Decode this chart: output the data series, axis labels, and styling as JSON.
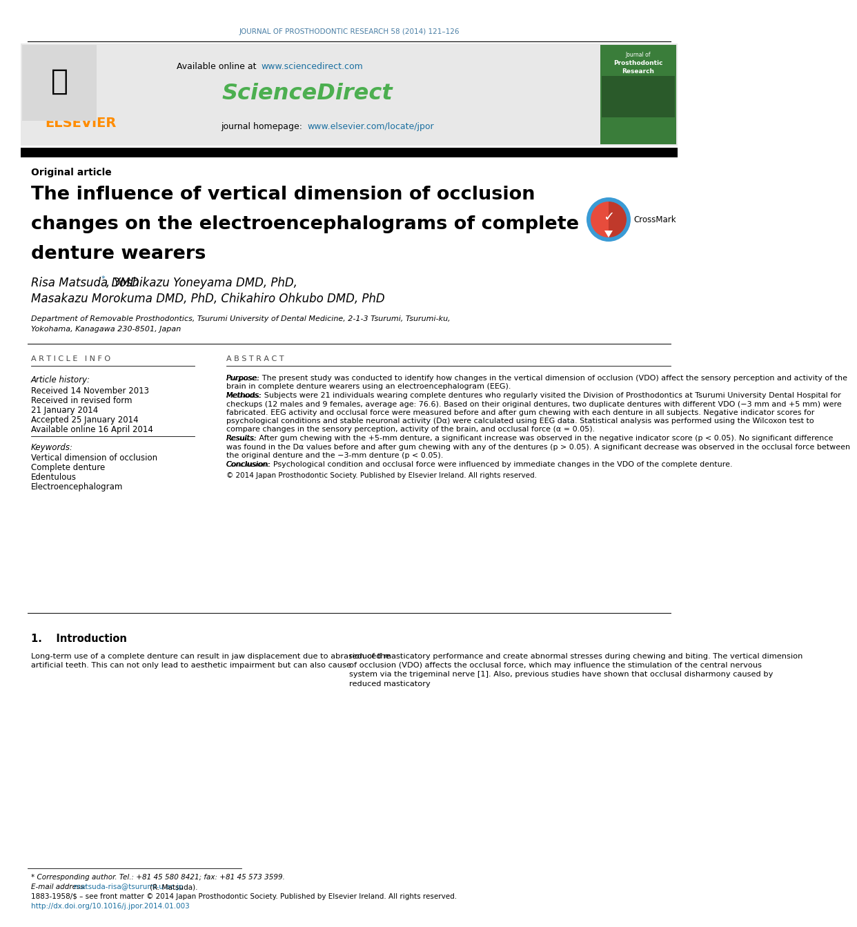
{
  "journal_header": "JOURNAL OF PROSTHODONTIC RESEARCH 58 (2014) 121–126",
  "journal_header_color": "#4a7fa5",
  "available_online_text": "Available online at ",
  "sciencedirect_url": "www.sciencedirect.com",
  "sciencedirect_logo": "ScienceDirect",
  "sciencedirect_color": "#4caf50",
  "journal_homepage_text": "journal homepage: ",
  "journal_homepage_url": "www.elsevier.com/locate/jpor",
  "elsevier_color": "#ff8c00",
  "article_type": "Original article",
  "title_line1": "The influence of vertical dimension of occlusion",
  "title_line2": "changes on the electroencephalograms of complete",
  "title_line3": "denture wearers",
  "authors_line1_pre": "Risa Matsuda DMD",
  "authors_line1_post": ", Yoshikazu Yoneyama DMD, PhD,",
  "authors_line2": "Masakazu Morokuma DMD, PhD, Chikahiro Ohkubo DMD, PhD",
  "affiliation_line1": "Department of Removable Prosthodontics, Tsurumi University of Dental Medicine, 2-1-3 Tsurumi, Tsurumi-ku,",
  "affiliation_line2": "Yokohama, Kanagawa 230-8501, Japan",
  "article_info_header": "A R T I C L E   I N F O",
  "article_history_label": "Article history:",
  "received1": "Received 14 November 2013",
  "received2": "Received in revised form",
  "received2b": "21 January 2014",
  "accepted": "Accepted 25 January 2014",
  "available_online": "Available online 16 April 2014",
  "keywords_label": "Keywords:",
  "keywords": [
    "Vertical dimension of occlusion",
    "Complete denture",
    "Edentulous",
    "Electroencephalogram"
  ],
  "abstract_header": "A B S T R A C T",
  "abstract_purpose_label": "Purpose:",
  "abstract_purpose": "  The present study was conducted to identify how changes in the vertical dimension of occlusion (VDO) affect the sensory perception and activity of the brain in complete denture wearers using an electroencephalogram (EEG).",
  "abstract_methods_label": "Methods:",
  "abstract_methods": "  Subjects were 21 individuals wearing complete dentures who regularly visited the Division of Prosthodontics at Tsurumi University Dental Hospital for checkups (12 males and 9 females, average age: 76.6). Based on their original dentures, two duplicate dentures with different VDO (−3 mm and +5 mm) were fabricated. EEG activity and occlusal force were measured before and after gum chewing with each denture in all subjects. Negative indicator scores for psychological conditions and stable neuronal activity (Dα) were calculated using EEG data. Statistical analysis was performed using the Wilcoxon test to compare changes in the sensory perception, activity of the brain, and occlusal force (α = 0.05).",
  "abstract_results_label": "Results:",
  "abstract_results": "  After gum chewing with the +5-mm denture, a significant increase was observed in the negative indicator score (p < 0.05). No significant difference was found in the Dα values before and after gum chewing with any of the dentures (p > 0.05). A significant decrease was observed in the occlusal force between the original denture and the −3-mm denture (p < 0.05).",
  "abstract_conclusion_label": "Conclusion:",
  "abstract_conclusion": "  Psychological condition and occlusal force were influenced by immediate changes in the VDO of the complete denture.",
  "copyright": "© 2014 Japan Prosthodontic Society. Published by Elsevier Ireland. All rights reserved.",
  "section1_header": "1.    Introduction",
  "section1_col1": "Long-term use of a complete denture can result in jaw displacement due to abrasion of the artificial teeth. This can not only lead to aesthetic impairment but can also cause",
  "section1_col2": "reduced masticatory performance and create abnormal stresses during chewing and biting. The vertical dimension of occlusion (VDO) affects the occlusal force, which may influence the stimulation of the central nervous system via the trigeminal nerve [1]. Also, previous studies have shown that occlusal disharmony caused by reduced masticatory",
  "footnote_corresponding": "* Corresponding author. Tel.: +81 45 580 8421; fax: +81 45 573 3599.",
  "footnote_email_label": "E-mail address: ",
  "footnote_email": "matsuda-risa@tsurumi-u.ac.jp",
  "footnote_email_suffix": " (R. Matsuda).",
  "footnote_issn": "1883-1958/$ – see front matter © 2014 Japan Prosthodontic Society. Published by Elsevier Ireland. All rights reserved.",
  "footnote_doi": "http://dx.doi.org/10.1016/j.jpor.2014.01.003",
  "bg_header_color": "#e8e8e8",
  "url_color": "#1a6fa0",
  "crossmark_blue": "#3a9bd5",
  "crossmark_red": "#c0392b"
}
